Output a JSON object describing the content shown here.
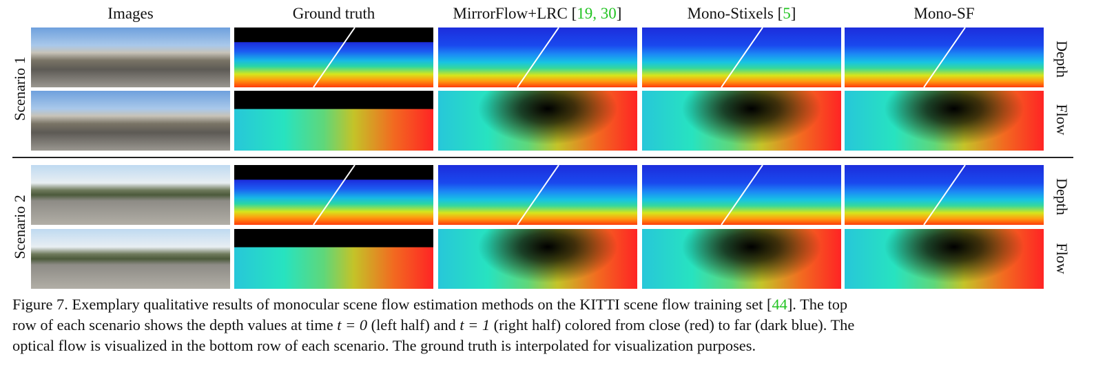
{
  "columns": [
    {
      "text": "Images",
      "cites": ""
    },
    {
      "text": "Ground truth",
      "cites": ""
    },
    {
      "text": "MirrorFlow+LRC [",
      "cites": "19, 30",
      "close": "]"
    },
    {
      "text": "Mono-Stixels [",
      "cites": "5",
      "close": "]"
    },
    {
      "text": "Mono-SF",
      "cites": ""
    }
  ],
  "scenarios": [
    {
      "label": "Scenario 1",
      "rows": [
        "Depth",
        "Flow"
      ]
    },
    {
      "label": "Scenario 2",
      "rows": [
        "Depth",
        "Flow"
      ]
    }
  ],
  "caption": {
    "line1_a": "Figure 7. Exemplary qualitative results of monocular scene flow estimation methods on the KITTI scene flow training set [",
    "line1_cite": "44",
    "line1_b": "].  The top",
    "line2_a": "row of each scenario shows the depth values at time ",
    "line2_t0": "t = 0",
    "line2_b": " (left half) and ",
    "line2_t1": "t = 1",
    "line2_c": " (right half) colored from close (red) to far (dark blue). The",
    "line3": "optical flow is visualized in the bottom row of each scenario. The ground truth is interpolated for visualization purposes."
  },
  "colors": {
    "citation": "#22c322"
  }
}
